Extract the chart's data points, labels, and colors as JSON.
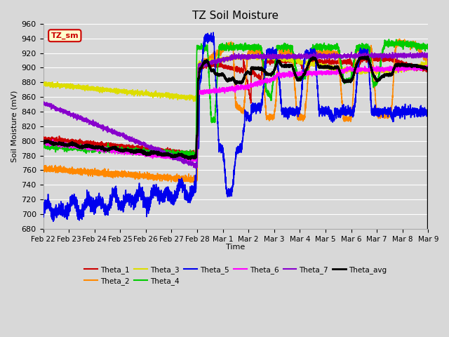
{
  "title": "TZ Soil Moisture",
  "xlabel": "Time",
  "ylabel": "Soil Moisture (mV)",
  "ylim": [
    680,
    960
  ],
  "yticks": [
    680,
    700,
    720,
    740,
    760,
    780,
    800,
    820,
    840,
    860,
    880,
    900,
    920,
    940,
    960
  ],
  "background_color": "#d8d8d8",
  "plot_bg_color": "#d8d8d8",
  "grid_color": "#ffffff",
  "title_fontsize": 11,
  "label_box": "TZ_sm",
  "label_box_color": "#ffffcc",
  "label_box_border": "#cc0000",
  "series": {
    "Theta_1": {
      "color": "#cc0000",
      "lw": 1.2
    },
    "Theta_2": {
      "color": "#ff8800",
      "lw": 1.2
    },
    "Theta_3": {
      "color": "#dddd00",
      "lw": 1.2
    },
    "Theta_4": {
      "color": "#00cc00",
      "lw": 1.2
    },
    "Theta_5": {
      "color": "#0000ee",
      "lw": 1.2
    },
    "Theta_6": {
      "color": "#ff00ff",
      "lw": 1.2
    },
    "Theta_7": {
      "color": "#8800cc",
      "lw": 1.2
    },
    "Theta_avg": {
      "color": "#000000",
      "lw": 2.0
    }
  },
  "xtick_labels": [
    "Feb 22",
    "Feb 23",
    "Feb 24",
    "Feb 25",
    "Feb 26",
    "Feb 27",
    "Feb 28",
    "Mar 1",
    "Mar 2",
    "Mar 3",
    "Mar 4",
    "Mar 5",
    "Mar 6",
    "Mar 7",
    "Mar 8",
    "Mar 9"
  ],
  "xtick_positions": [
    0,
    1,
    2,
    3,
    4,
    5,
    6,
    7,
    8,
    9,
    10,
    11,
    12,
    13,
    14,
    15
  ]
}
